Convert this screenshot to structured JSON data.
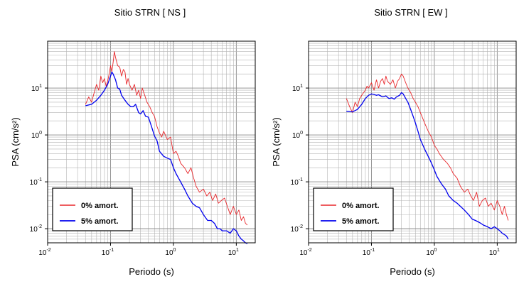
{
  "chart_data": [
    {
      "type": "line",
      "title": "Sitio STRN [ NS ]",
      "xlabel": "Periodo (s)",
      "ylabel": "PSA (cm/s²)",
      "xscale": "log",
      "yscale": "log",
      "xlim": [
        0.01,
        20
      ],
      "ylim": [
        0.005,
        100
      ],
      "grid": true,
      "legend_position": "bottom-left",
      "xticks": [
        {
          "v": 0.01,
          "m": "10",
          "e": "-2"
        },
        {
          "v": 0.1,
          "m": "10",
          "e": "-1"
        },
        {
          "v": 1,
          "m": "10",
          "e": "0"
        },
        {
          "v": 10,
          "m": "10",
          "e": "1"
        }
      ],
      "yticks": [
        {
          "v": 0.01,
          "m": "10",
          "e": "-2"
        },
        {
          "v": 0.1,
          "m": "10",
          "e": "-1"
        },
        {
          "v": 1,
          "m": "10",
          "e": "0"
        },
        {
          "v": 10,
          "m": "10",
          "e": "1"
        }
      ],
      "series": [
        {
          "name": "0% amort.",
          "color": "#e8262a",
          "width": 0.9,
          "x": [
            0.04,
            0.045,
            0.05,
            0.055,
            0.06,
            0.065,
            0.07,
            0.075,
            0.08,
            0.085,
            0.09,
            0.095,
            0.1,
            0.105,
            0.11,
            0.115,
            0.12,
            0.13,
            0.14,
            0.15,
            0.16,
            0.17,
            0.18,
            0.19,
            0.2,
            0.22,
            0.24,
            0.26,
            0.28,
            0.3,
            0.32,
            0.35,
            0.38,
            0.42,
            0.46,
            0.5,
            0.55,
            0.6,
            0.65,
            0.7,
            0.8,
            0.9,
            1.0,
            1.1,
            1.2,
            1.3,
            1.5,
            1.7,
            1.9,
            2.1,
            2.3,
            2.6,
            3.0,
            3.4,
            3.8,
            4.2,
            4.7,
            5.2,
            5.8,
            6.5,
            7.2,
            8.0,
            9.0,
            10,
            11,
            12,
            13,
            14,
            15
          ],
          "y": [
            4.5,
            6.5,
            5,
            8,
            12,
            9,
            18,
            13,
            16,
            11,
            14,
            20,
            30,
            22,
            35,
            60,
            45,
            30,
            28,
            18,
            25,
            22,
            12,
            16,
            12,
            9,
            12,
            7,
            9,
            6,
            10,
            7,
            5,
            4,
            3,
            2.5,
            1.5,
            1.1,
            0.9,
            1.2,
            0.8,
            0.9,
            0.4,
            0.45,
            0.35,
            0.25,
            0.2,
            0.15,
            0.2,
            0.12,
            0.08,
            0.06,
            0.07,
            0.05,
            0.06,
            0.04,
            0.055,
            0.035,
            0.04,
            0.045,
            0.03,
            0.02,
            0.03,
            0.02,
            0.025,
            0.015,
            0.018,
            0.013,
            0.012
          ]
        },
        {
          "name": "5% amort.",
          "color": "#0000ee",
          "width": 1.3,
          "x": [
            0.04,
            0.05,
            0.06,
            0.07,
            0.08,
            0.09,
            0.1,
            0.105,
            0.11,
            0.12,
            0.13,
            0.14,
            0.15,
            0.17,
            0.19,
            0.21,
            0.23,
            0.25,
            0.28,
            0.3,
            0.33,
            0.36,
            0.4,
            0.45,
            0.5,
            0.55,
            0.6,
            0.7,
            0.8,
            0.9,
            1.0,
            1.1,
            1.3,
            1.5,
            1.7,
            2.0,
            2.3,
            2.6,
            3.0,
            3.5,
            4.0,
            4.5,
            5.0,
            5.5,
            6,
            7,
            8,
            9,
            10,
            11,
            12,
            13,
            14,
            15
          ],
          "y": [
            4.2,
            4.5,
            5.5,
            7,
            9,
            12,
            18,
            22,
            20,
            15,
            10,
            9.5,
            7,
            5.5,
            4.5,
            4,
            4,
            4.5,
            3,
            2.8,
            3.3,
            2.5,
            2.4,
            1.5,
            0.95,
            0.75,
            0.45,
            0.35,
            0.32,
            0.3,
            0.2,
            0.15,
            0.1,
            0.07,
            0.05,
            0.035,
            0.03,
            0.028,
            0.02,
            0.015,
            0.015,
            0.013,
            0.01,
            0.01,
            0.009,
            0.009,
            0.008,
            0.01,
            0.009,
            0.007,
            0.006,
            0.0055,
            0.005,
            0.0048
          ]
        }
      ]
    },
    {
      "type": "line",
      "title": "Sitio STRN [ EW ]",
      "xlabel": "Periodo (s)",
      "ylabel": "PSA (cm/s²)",
      "xscale": "log",
      "yscale": "log",
      "xlim": [
        0.01,
        20
      ],
      "ylim": [
        0.005,
        100
      ],
      "grid": true,
      "legend_position": "bottom-left",
      "xticks": [
        {
          "v": 0.01,
          "m": "10",
          "e": "-2"
        },
        {
          "v": 0.1,
          "m": "10",
          "e": "-1"
        },
        {
          "v": 1,
          "m": "10",
          "e": "0"
        },
        {
          "v": 10,
          "m": "10",
          "e": "1"
        }
      ],
      "yticks": [
        {
          "v": 0.01,
          "m": "10",
          "e": "-2"
        },
        {
          "v": 0.1,
          "m": "10",
          "e": "-1"
        },
        {
          "v": 1,
          "m": "10",
          "e": "0"
        },
        {
          "v": 10,
          "m": "10",
          "e": "1"
        }
      ],
      "series": [
        {
          "name": "0% amort.",
          "color": "#e8262a",
          "width": 0.9,
          "x": [
            0.04,
            0.045,
            0.05,
            0.055,
            0.06,
            0.065,
            0.07,
            0.075,
            0.08,
            0.085,
            0.09,
            0.1,
            0.11,
            0.12,
            0.13,
            0.14,
            0.15,
            0.16,
            0.17,
            0.18,
            0.2,
            0.22,
            0.24,
            0.26,
            0.28,
            0.3,
            0.32,
            0.35,
            0.38,
            0.42,
            0.46,
            0.5,
            0.55,
            0.6,
            0.7,
            0.8,
            0.9,
            1.0,
            1.1,
            1.2,
            1.4,
            1.6,
            1.8,
            2.0,
            2.3,
            2.6,
            3.0,
            3.4,
            3.8,
            4.2,
            4.7,
            5.2,
            5.8,
            6.5,
            7.2,
            8.0,
            9,
            10,
            11,
            12,
            13,
            14,
            15
          ],
          "y": [
            6,
            4,
            3,
            5,
            4,
            6,
            7,
            8,
            9,
            11,
            10,
            13,
            9,
            15,
            10,
            14,
            16,
            12,
            18,
            14,
            12,
            15,
            10,
            14,
            16,
            20,
            18,
            13,
            10,
            8,
            6,
            5,
            4,
            3,
            1.8,
            1.2,
            0.9,
            0.6,
            0.5,
            0.4,
            0.3,
            0.25,
            0.2,
            0.15,
            0.12,
            0.08,
            0.06,
            0.07,
            0.05,
            0.04,
            0.06,
            0.03,
            0.04,
            0.045,
            0.03,
            0.035,
            0.025,
            0.04,
            0.03,
            0.02,
            0.03,
            0.02,
            0.015
          ]
        },
        {
          "name": "5% amort.",
          "color": "#0000ee",
          "width": 1.3,
          "x": [
            0.04,
            0.05,
            0.06,
            0.07,
            0.08,
            0.09,
            0.1,
            0.11,
            0.12,
            0.13,
            0.15,
            0.17,
            0.19,
            0.21,
            0.23,
            0.25,
            0.28,
            0.3,
            0.32,
            0.35,
            0.38,
            0.42,
            0.46,
            0.5,
            0.55,
            0.6,
            0.7,
            0.8,
            0.9,
            1.0,
            1.1,
            1.3,
            1.5,
            1.7,
            2.0,
            2.3,
            2.6,
            3.0,
            3.5,
            4.0,
            4.5,
            5.0,
            5.5,
            6,
            7,
            8,
            9,
            10,
            11,
            12,
            13,
            14,
            15
          ],
          "y": [
            3.2,
            3.1,
            3.5,
            4.5,
            6,
            7,
            7.5,
            7.3,
            7,
            7.2,
            6.5,
            6.8,
            6,
            6.2,
            5.8,
            6.5,
            7,
            8,
            7.5,
            6,
            5,
            3.5,
            2.5,
            1.8,
            1.2,
            0.8,
            0.5,
            0.35,
            0.25,
            0.18,
            0.13,
            0.09,
            0.07,
            0.05,
            0.04,
            0.035,
            0.03,
            0.025,
            0.02,
            0.016,
            0.015,
            0.014,
            0.013,
            0.012,
            0.011,
            0.01,
            0.011,
            0.01,
            0.009,
            0.008,
            0.0075,
            0.007,
            0.006
          ]
        }
      ]
    }
  ]
}
